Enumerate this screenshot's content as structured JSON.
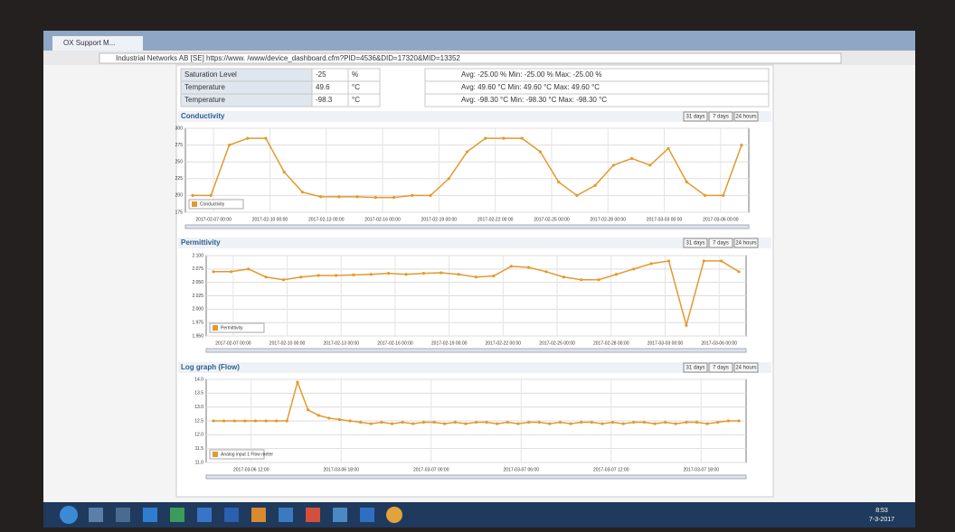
{
  "browser": {
    "tab": "OX Support M...",
    "address": "Industrial Networks AB [SE]  https://www.        /www/device_dashboard.cfm?PID=4536&DID=17320&MID=13352"
  },
  "table": {
    "rows": [
      [
        "Saturation Level",
        "-25",
        "%",
        "Avg: -25.00 % Min: -25.00 % Max: -25.00 %"
      ],
      [
        "Temperature",
        "49.6",
        "°C",
        "Avg: 49.60 °C Min: 49.60 °C Max: 49.60 °C"
      ],
      [
        "Temperature",
        "-98.3",
        "°C",
        "Avg: -98.30 °C Min: -98.30 °C Max: -98.30 °C"
      ]
    ]
  },
  "panels": [
    {
      "title": "Conductivity",
      "buttons": [
        "31 days",
        "7 days",
        "24 hours"
      ],
      "legend": "Conductivity",
      "color": "#e39a2d",
      "ylim": [
        175,
        300
      ],
      "yticks": [
        175,
        200,
        225,
        250,
        275,
        300
      ],
      "xticks": [
        "2017-02-07 00:00",
        "2017-02-10 00:00",
        "2017-02-13 00:00",
        "2017-02-16 00:00",
        "2017-02-19 00:00",
        "2017-02-22 00:00",
        "2017-02-25 00:00",
        "2017-02-28 00:00",
        "2017-03-03 00:00",
        "2017-03-06 00:00"
      ],
      "values": [
        200,
        200,
        275,
        285,
        285,
        235,
        205,
        198,
        198,
        198,
        197,
        197,
        200,
        200,
        225,
        265,
        285,
        285,
        285,
        265,
        220,
        200,
        215,
        245,
        255,
        245,
        270,
        220,
        200,
        200,
        275
      ]
    },
    {
      "title": "Permittivity",
      "buttons": [
        "31 days",
        "7 days",
        "24 hours"
      ],
      "legend": "Permittivity",
      "color": "#e39a2d",
      "ylim": [
        1.95,
        2.1
      ],
      "yticks": [
        {
          "value": 1.95,
          "label": "1.950"
        },
        {
          "value": 1.975,
          "label": "1.975"
        },
        {
          "value": 2.0,
          "label": "2.000"
        },
        {
          "value": 2.025,
          "label": "2.025"
        },
        {
          "value": 2.05,
          "label": "2.050"
        },
        {
          "value": 2.075,
          "label": "2.075"
        },
        {
          "value": 2.1,
          "label": "2.100"
        }
      ],
      "xticks": [
        "2017-02-07 00:00",
        "2017-02-10 00:00",
        "2017-02-13 00:00",
        "2017-02-16 00:00",
        "2017-02-19 00:00",
        "2017-02-22 00:00",
        "2017-02-25 00:00",
        "2017-02-28 00:00",
        "2017-03-03 00:00",
        "2017-03-06 00:00"
      ],
      "values": [
        2.07,
        2.07,
        2.075,
        2.06,
        2.055,
        2.06,
        2.063,
        2.063,
        2.064,
        2.065,
        2.067,
        2.065,
        2.067,
        2.068,
        2.065,
        2.06,
        2.062,
        2.08,
        2.078,
        2.07,
        2.06,
        2.055,
        2.055,
        2.065,
        2.075,
        2.085,
        2.09,
        1.97,
        2.09,
        2.09,
        2.07
      ]
    },
    {
      "title": "Log graph (Flow)",
      "buttons": [
        "31 days",
        "7 days",
        "24 hours"
      ],
      "legend": "Analog input 1 Flow meter",
      "color": "#e39a2d",
      "ylim": [
        11,
        14
      ],
      "yticks": [
        {
          "value": 11,
          "label": "11.0"
        },
        {
          "value": 11.5,
          "label": "11.5"
        },
        {
          "value": 12,
          "label": "12.0"
        },
        {
          "value": 12.5,
          "label": "12.5"
        },
        {
          "value": 13,
          "label": "13.0"
        },
        {
          "value": 13.5,
          "label": "13.5"
        },
        {
          "value": 14,
          "label": "14.0"
        }
      ],
      "xticks": [
        "2017-03-06 12:00",
        "2017-03-06 18:00",
        "2017-03-07 00:00",
        "2017-03-07 06:00",
        "2017-03-07 12:00",
        "2017-03-07 18:00"
      ],
      "values": [
        12.5,
        12.5,
        12.5,
        12.5,
        12.5,
        12.5,
        12.5,
        12.5,
        13.9,
        12.9,
        12.7,
        12.6,
        12.55,
        12.5,
        12.45,
        12.4,
        12.45,
        12.4,
        12.45,
        12.4,
        12.45,
        12.45,
        12.4,
        12.45,
        12.4,
        12.45,
        12.45,
        12.4,
        12.45,
        12.4,
        12.45,
        12.45,
        12.4,
        12.45,
        12.4,
        12.45,
        12.45,
        12.4,
        12.45,
        12.4,
        12.45,
        12.45,
        12.4,
        12.45,
        12.4,
        12.45,
        12.45,
        12.4,
        12.45,
        12.5,
        12.5
      ]
    }
  ],
  "taskbar": {
    "clock": "8:53",
    "date": "7-3-2017"
  }
}
